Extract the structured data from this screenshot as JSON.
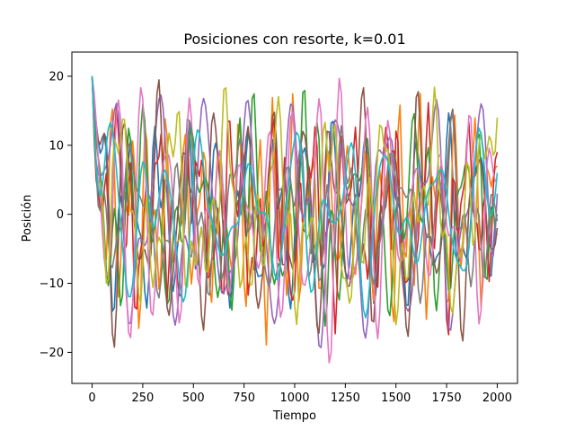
{
  "chart_data": {
    "type": "line",
    "title": "Posiciones con resorte, k=0.01",
    "xlabel": "Tiempo",
    "ylabel": "Posición",
    "xlim": [
      -100,
      2100
    ],
    "ylim": [
      -24.5,
      23.5
    ],
    "xticks": [
      0,
      250,
      500,
      750,
      1000,
      1250,
      1500,
      1750,
      2000
    ],
    "yticks": [
      -20,
      -10,
      0,
      10,
      20
    ],
    "xtick_labels": [
      "0",
      "250",
      "500",
      "750",
      "1000",
      "1250",
      "1500",
      "1750",
      "2000"
    ],
    "ytick_labels": [
      "−20",
      "−10",
      "0",
      "10",
      "20"
    ],
    "grid": false,
    "legend": "none",
    "x_start": 0,
    "x_end": 2000,
    "samples_per_series": 201,
    "series": [
      {
        "color": "#1f77b4",
        "start": 20,
        "end": 0,
        "amplitude": 9,
        "base_period": 85,
        "seed": 1
      },
      {
        "color": "#ff7f0e",
        "start": 20,
        "end": 7,
        "amplitude": 10,
        "base_period": 70,
        "seed": 2
      },
      {
        "color": "#2ca02c",
        "start": 20,
        "end": -3,
        "amplitude": 11,
        "base_period": 95,
        "seed": 3
      },
      {
        "color": "#d62728",
        "start": 20,
        "end": 9,
        "amplitude": 12,
        "base_period": 78,
        "seed": 4
      },
      {
        "color": "#9467bd",
        "start": 20,
        "end": 3,
        "amplitude": 10,
        "base_period": 110,
        "seed": 5
      },
      {
        "color": "#8c564b",
        "start": 20,
        "end": -2,
        "amplitude": 10,
        "base_period": 88,
        "seed": 6
      },
      {
        "color": "#e377c2",
        "start": 20,
        "end": 5,
        "amplitude": 11,
        "base_period": 100,
        "seed": 7
      },
      {
        "color": "#7f7f7f",
        "start": 20,
        "end": -1,
        "amplitude": 8,
        "base_period": 92,
        "seed": 8
      },
      {
        "color": "#bcbd22",
        "start": 20,
        "end": 14,
        "amplitude": 12,
        "base_period": 105,
        "seed": 9
      },
      {
        "color": "#17becf",
        "start": 20,
        "end": 6,
        "amplitude": 11,
        "base_period": 115,
        "seed": 10
      }
    ]
  }
}
